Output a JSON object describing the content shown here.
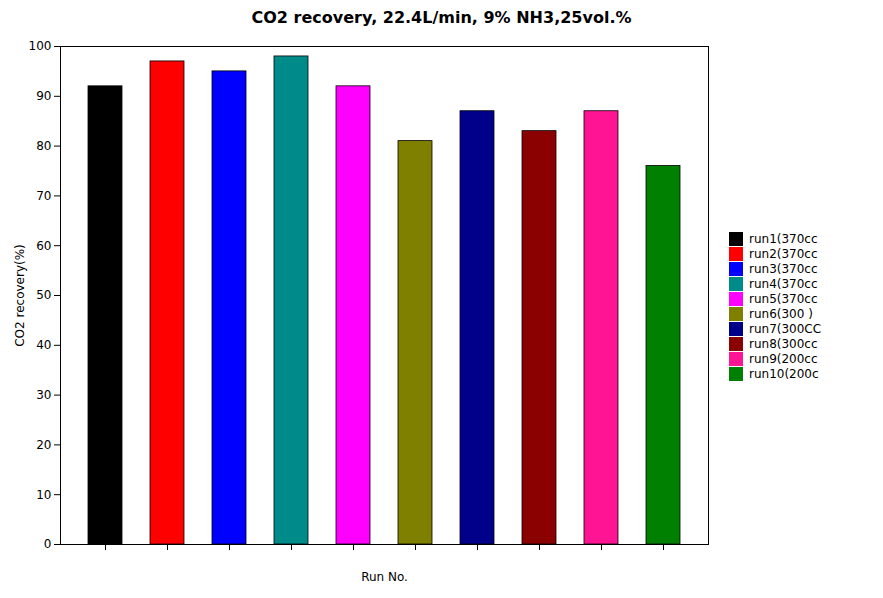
{
  "chart_data": {
    "type": "bar",
    "title": "CO2 recovery, 22.4L/min, 9% NH3,25vol.%",
    "xlabel": "Run No.",
    "ylabel": "CO2 recovery(%)",
    "categories": [
      "run1(370cc",
      "run2(370cc",
      "run3(370cc",
      "run4(370cc",
      "run5(370cc",
      "run6(300 )",
      "run7(300CC",
      "run8(300cc",
      "run9(200cc",
      "run10(200c"
    ],
    "values": [
      92.0,
      97.0,
      95.0,
      98.0,
      92.0,
      81.0,
      87.0,
      83.0,
      87.0,
      76.0
    ],
    "colors": [
      "#000000",
      "#FF0000",
      "#0000FF",
      "#008B8B",
      "#FF00FF",
      "#808000",
      "#00008B",
      "#8B0000",
      "#FF1493",
      "#008000"
    ],
    "ylim": [
      0,
      100
    ],
    "yticks": [
      0,
      10,
      20,
      30,
      40,
      50,
      60,
      70,
      80,
      90,
      100
    ],
    "tick_labels": "y",
    "legend": "right"
  }
}
